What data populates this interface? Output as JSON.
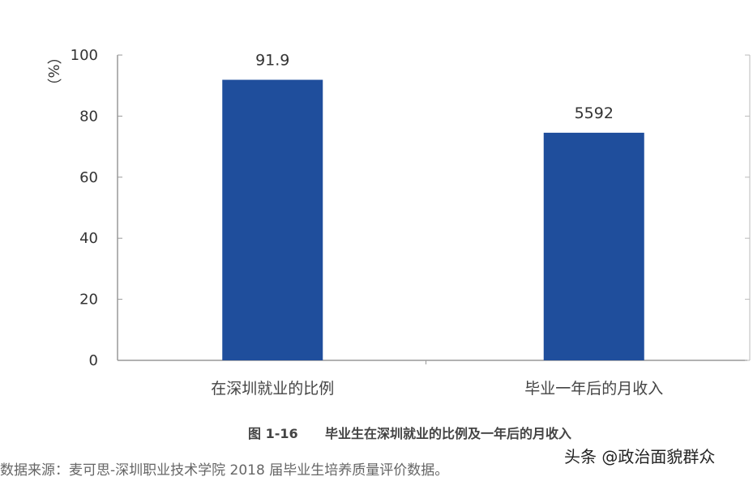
{
  "chart_data": {
    "type": "bar",
    "categories": [
      "在深圳就业的比例",
      "毕业一年后的月收入"
    ],
    "values": [
      91.9,
      5592
    ],
    "data_labels": [
      "91.9",
      "5592"
    ],
    "ylabel": "（%）",
    "ylim": [
      0,
      100
    ],
    "yticks": [
      "0",
      "20",
      "40",
      "60",
      "80",
      "100"
    ],
    "y2lim": [
      0,
      7500
    ],
    "secondary_axis_series": [
      false,
      true
    ],
    "bar_color": "#1f4e9c",
    "grid": false,
    "title": "图 1-16",
    "subtitle": "毕业生在深圳就业的比例及一年后的月收入"
  },
  "source_note": "数据来源：麦可思-深圳职业技术学院 2018 届毕业生培养质量评价数据。",
  "watermark": "头条 @政治面貌群众"
}
